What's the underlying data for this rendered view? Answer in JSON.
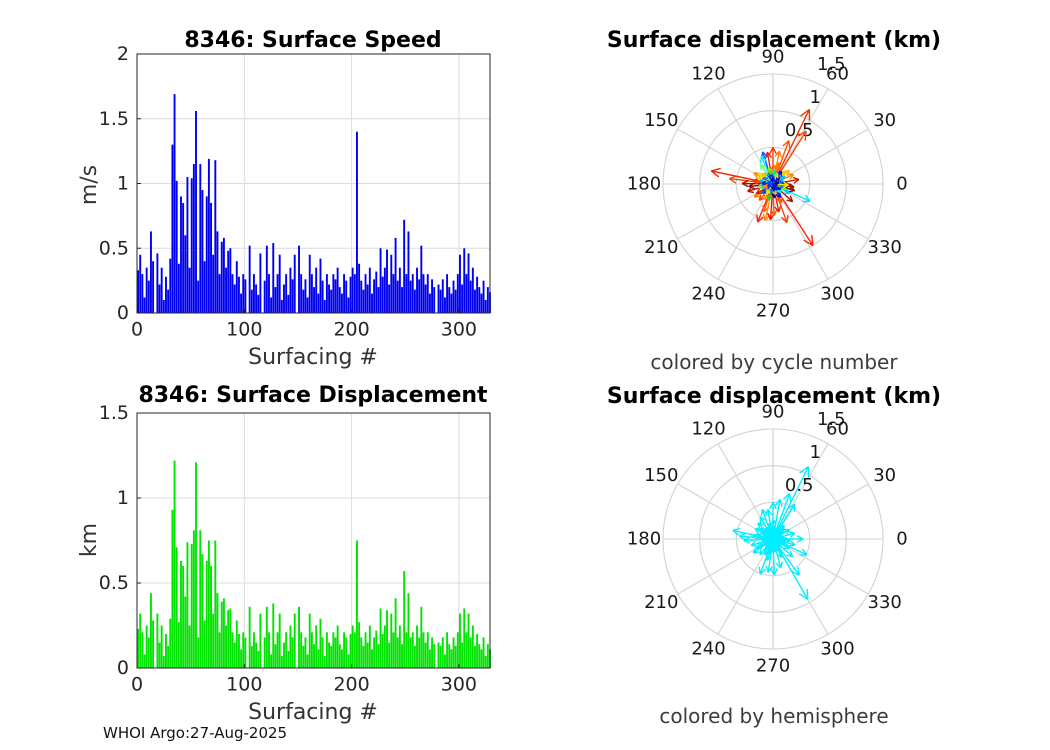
{
  "page": {
    "background": "#ffffff",
    "footer": "WHOI Argo:27-Aug-2025"
  },
  "chart_data": {
    "surface_speed": {
      "type": "bar",
      "title": "8346: Surface Speed",
      "xlabel": "Surfacing #",
      "ylabel": "m/s",
      "bar_color": "#0000f0",
      "grid": "on",
      "xlim": [
        0,
        329
      ],
      "ylim": [
        0,
        2
      ],
      "xticks": [
        0,
        100,
        200,
        300
      ],
      "xtick_labels": [
        "0",
        "100",
        "200",
        "300"
      ],
      "yticks": [
        0,
        0.5,
        1,
        1.5,
        2
      ],
      "ytick_labels": [
        "0",
        "0.5",
        "1",
        "1.5",
        "2"
      ],
      "x_start": 1,
      "x_step": 2,
      "values": [
        0.33,
        0.45,
        0.3,
        0.12,
        0.35,
        0.25,
        0.63,
        0.4,
        0.0,
        0.46,
        0.22,
        0.35,
        0.1,
        0.28,
        0.18,
        0.42,
        1.3,
        1.69,
        1.02,
        0.38,
        0.9,
        0.85,
        0.6,
        1.05,
        0.35,
        1.04,
        1.15,
        1.56,
        0.25,
        1.15,
        0.95,
        0.4,
        0.9,
        1.19,
        0.85,
        0.45,
        1.18,
        0.63,
        0.3,
        0.55,
        0.58,
        0.35,
        0.48,
        0.5,
        0.3,
        0.22,
        0.4,
        0.28,
        0.15,
        0.3,
        0.26,
        0.0,
        0.52,
        0.18,
        0.3,
        0.22,
        0.14,
        0.46,
        0.0,
        0.25,
        0.52,
        0.3,
        0.12,
        0.54,
        0.2,
        0.3,
        0.45,
        0.1,
        0.22,
        0.3,
        0.14,
        0.35,
        0.26,
        0.45,
        0.0,
        0.52,
        0.3,
        0.18,
        0.26,
        0.12,
        0.45,
        0.3,
        0.2,
        0.35,
        0.15,
        0.42,
        0.25,
        0.1,
        0.3,
        0.22,
        0.18,
        0.3,
        0.26,
        0.35,
        0.2,
        0.15,
        0.3,
        0.25,
        0.12,
        0.28,
        0.35,
        0.3,
        1.4,
        0.38,
        0.25,
        0.18,
        0.3,
        0.22,
        0.35,
        0.15,
        0.26,
        0.32,
        0.2,
        0.5,
        0.28,
        0.35,
        0.49,
        0.22,
        0.45,
        0.3,
        0.58,
        0.25,
        0.35,
        0.2,
        0.72,
        0.3,
        0.63,
        0.25,
        0.3,
        0.18,
        0.35,
        0.26,
        0.52,
        0.3,
        0.22,
        0.3,
        0.15,
        0.26,
        0.2,
        0.0,
        0.22,
        0.18,
        0.26,
        0.12,
        0.3,
        0.2,
        0.15,
        0.25,
        0.18,
        0.3,
        0.45,
        0.22,
        0.5,
        0.3,
        0.46,
        0.25,
        0.35,
        0.18,
        0.28,
        0.2,
        0.15,
        0.25,
        0.1,
        0.2,
        0.16
      ]
    },
    "surface_displacement": {
      "type": "bar",
      "title": "8346: Surface Displacement",
      "xlabel": "Surfacing #",
      "ylabel": "km",
      "bar_color": "#00e400",
      "grid": "on",
      "xlim": [
        0,
        329
      ],
      "ylim": [
        0,
        1.5
      ],
      "xticks": [
        0,
        100,
        200,
        300
      ],
      "xtick_labels": [
        "0",
        "100",
        "200",
        "300"
      ],
      "yticks": [
        0,
        0.5,
        1,
        1.5
      ],
      "ytick_labels": [
        "0",
        "0.5",
        "1",
        "1.5"
      ],
      "x_start": 1,
      "x_step": 2,
      "values": [
        0.23,
        0.32,
        0.21,
        0.08,
        0.25,
        0.18,
        0.44,
        0.28,
        0.0,
        0.32,
        0.15,
        0.25,
        0.07,
        0.2,
        0.13,
        0.29,
        0.93,
        1.22,
        0.71,
        0.27,
        0.63,
        0.6,
        0.42,
        0.74,
        0.25,
        0.73,
        0.81,
        1.21,
        0.18,
        0.81,
        0.67,
        0.28,
        0.63,
        0.75,
        0.6,
        0.32,
        0.75,
        0.44,
        0.21,
        0.39,
        0.41,
        0.25,
        0.34,
        0.35,
        0.21,
        0.15,
        0.28,
        0.2,
        0.11,
        0.21,
        0.18,
        0.0,
        0.36,
        0.13,
        0.21,
        0.15,
        0.1,
        0.32,
        0.0,
        0.18,
        0.36,
        0.21,
        0.08,
        0.38,
        0.14,
        0.21,
        0.32,
        0.07,
        0.15,
        0.21,
        0.1,
        0.25,
        0.18,
        0.32,
        0.0,
        0.36,
        0.21,
        0.13,
        0.18,
        0.08,
        0.32,
        0.21,
        0.14,
        0.25,
        0.11,
        0.29,
        0.18,
        0.07,
        0.21,
        0.15,
        0.13,
        0.21,
        0.18,
        0.25,
        0.14,
        0.11,
        0.21,
        0.18,
        0.08,
        0.2,
        0.25,
        0.21,
        0.75,
        0.27,
        0.18,
        0.13,
        0.21,
        0.15,
        0.25,
        0.11,
        0.18,
        0.22,
        0.14,
        0.35,
        0.2,
        0.25,
        0.34,
        0.15,
        0.32,
        0.21,
        0.41,
        0.18,
        0.25,
        0.14,
        0.57,
        0.21,
        0.44,
        0.18,
        0.21,
        0.13,
        0.25,
        0.18,
        0.36,
        0.21,
        0.15,
        0.21,
        0.11,
        0.18,
        0.14,
        0.0,
        0.15,
        0.13,
        0.18,
        0.08,
        0.21,
        0.14,
        0.11,
        0.18,
        0.13,
        0.21,
        0.32,
        0.15,
        0.35,
        0.21,
        0.32,
        0.18,
        0.25,
        0.13,
        0.2,
        0.14,
        0.11,
        0.18,
        0.07,
        0.14,
        0.11
      ]
    },
    "polar_by_cycle": {
      "type": "quiver-polar",
      "title": "Surface displacement (km)",
      "caption": "colored by cycle number",
      "rmax": 1.5,
      "rtick_values": [
        0.5,
        1,
        1.5
      ],
      "rtick_labels": [
        "0.5",
        "1",
        "1.5"
      ],
      "angle_ticks": [
        0,
        30,
        60,
        90,
        120,
        150,
        180,
        210,
        240,
        270,
        300,
        330
      ],
      "angle_tick_labels": [
        "0",
        "30",
        "60",
        "90",
        "120",
        "150",
        "180",
        "210",
        "240",
        "270",
        "300",
        "330"
      ],
      "colormap": "jet",
      "arrows": [
        [
          64,
          1.13,
          "#f03000"
        ],
        [
          58,
          0.85,
          "#ff4400"
        ],
        [
          70,
          0.63,
          "#ff5500"
        ],
        [
          79,
          0.46,
          "#ff8800"
        ],
        [
          90,
          0.5,
          "#ff3300"
        ],
        [
          100,
          0.44,
          "#ee2200"
        ],
        [
          108,
          0.46,
          "#2255ff"
        ],
        [
          113,
          0.41,
          "#00eeff"
        ],
        [
          122,
          0.32,
          "#66ff88"
        ],
        [
          150,
          0.3,
          "#ff8800"
        ],
        [
          168,
          0.86,
          "#ee2200"
        ],
        [
          173,
          0.6,
          "#ff4400"
        ],
        [
          179,
          0.42,
          "#991100"
        ],
        [
          186,
          0.33,
          "#881100"
        ],
        [
          196,
          0.36,
          "#bb1100"
        ],
        [
          215,
          0.31,
          "#ff7700"
        ],
        [
          230,
          0.29,
          "#ff4400"
        ],
        [
          248,
          0.56,
          "#ff2200"
        ],
        [
          252,
          0.4,
          "#ff6600"
        ],
        [
          258,
          0.51,
          "#ff8800"
        ],
        [
          266,
          0.49,
          "#ee1100"
        ],
        [
          272,
          0.43,
          "#ff5500"
        ],
        [
          282,
          0.39,
          "#ee2200"
        ],
        [
          290,
          0.56,
          "#ff4400"
        ],
        [
          303,
          1.0,
          "#ff2200"
        ],
        [
          318,
          0.36,
          "#aa1100"
        ],
        [
          335,
          0.56,
          "#00e5ff"
        ],
        [
          343,
          0.31,
          "#881100"
        ],
        [
          352,
          0.29,
          "#991100"
        ],
        [
          10,
          0.36,
          "#bb2200"
        ],
        [
          25,
          0.31,
          "#ff8800"
        ],
        [
          40,
          0.29,
          "#ffbb00"
        ],
        [
          45,
          0.24,
          "#ffcc00"
        ],
        [
          88,
          0.26,
          "#ff6600"
        ],
        [
          142,
          0.24,
          "#ddee00"
        ],
        [
          170,
          0.28,
          "#ff3300"
        ],
        [
          210,
          0.26,
          "#cc2200"
        ],
        [
          242,
          0.24,
          "#ff9900"
        ],
        [
          295,
          0.28,
          "#ff5500"
        ],
        [
          330,
          0.26,
          "#00ccff"
        ],
        [
          355,
          0.24,
          "#aa1100"
        ],
        [
          75,
          0.3,
          "#ff7700"
        ],
        [
          5,
          0.16,
          "#0033ee"
        ],
        [
          18,
          0.13,
          "#0077ff"
        ],
        [
          33,
          0.19,
          "#00bbff"
        ],
        [
          47,
          0.13,
          "#000099"
        ],
        [
          56,
          0.21,
          "#0011ee"
        ],
        [
          68,
          0.16,
          "#eeee00"
        ],
        [
          84,
          0.19,
          "#00ee88"
        ],
        [
          96,
          0.13,
          "#0044ff"
        ],
        [
          104,
          0.23,
          "#88ee00"
        ],
        [
          117,
          0.16,
          "#0000cc"
        ],
        [
          127,
          0.19,
          "#00eeff"
        ],
        [
          138,
          0.21,
          "#ffbb00"
        ],
        [
          148,
          0.16,
          "#0077ff"
        ],
        [
          158,
          0.23,
          "#eeee00"
        ],
        [
          166,
          0.19,
          "#00bbff"
        ],
        [
          176,
          0.16,
          "#0022ff"
        ],
        [
          192,
          0.21,
          "#77ee77"
        ],
        [
          204,
          0.13,
          "#ff8800"
        ],
        [
          222,
          0.19,
          "#0044ff"
        ],
        [
          238,
          0.16,
          "#eeee00"
        ],
        [
          254,
          0.23,
          "#00dd44"
        ],
        [
          262,
          0.13,
          "#0077ff"
        ],
        [
          276,
          0.19,
          "#000099"
        ],
        [
          286,
          0.16,
          "#ffbb00"
        ],
        [
          298,
          0.21,
          "#0011ee"
        ],
        [
          312,
          0.16,
          "#00eeff"
        ],
        [
          324,
          0.13,
          "#0000cc"
        ],
        [
          338,
          0.19,
          "#88ee00"
        ],
        [
          348,
          0.16,
          "#0077ff"
        ],
        [
          356,
          0.21,
          "#eeee00"
        ],
        [
          12,
          0.08,
          "#000099"
        ],
        [
          95,
          0.09,
          "#0000cc"
        ],
        [
          200,
          0.08,
          "#0033ee"
        ],
        [
          280,
          0.09,
          "#000099"
        ],
        [
          320,
          0.07,
          "#0011ee"
        ],
        [
          160,
          0.08,
          "#0044ff"
        ]
      ]
    },
    "polar_by_hemisphere": {
      "type": "quiver-polar",
      "title": "Surface displacement (km)",
      "caption": "colored by hemisphere",
      "rmax": 1.5,
      "rtick_values": [
        0.5,
        1,
        1.5
      ],
      "rtick_labels": [
        "0.5",
        "1",
        "1.5"
      ],
      "angle_ticks": [
        0,
        30,
        60,
        90,
        120,
        150,
        180,
        210,
        240,
        270,
        300,
        330
      ],
      "angle_tick_labels": [
        "0",
        "30",
        "60",
        "90",
        "120",
        "150",
        "180",
        "210",
        "240",
        "270",
        "300",
        "330"
      ],
      "arrow_color": "#00eeff",
      "arrows": [
        [
          64,
          1.1
        ],
        [
          58,
          0.56
        ],
        [
          70,
          0.66
        ],
        [
          80,
          0.55
        ],
        [
          90,
          0.5
        ],
        [
          100,
          0.41
        ],
        [
          110,
          0.43
        ],
        [
          120,
          0.35
        ],
        [
          133,
          0.3
        ],
        [
          150,
          0.28
        ],
        [
          168,
          0.56
        ],
        [
          175,
          0.46
        ],
        [
          183,
          0.4
        ],
        [
          196,
          0.31
        ],
        [
          215,
          0.33
        ],
        [
          230,
          0.28
        ],
        [
          250,
          0.51
        ],
        [
          262,
          0.46
        ],
        [
          272,
          0.49
        ],
        [
          285,
          0.41
        ],
        [
          300,
          0.95
        ],
        [
          306,
          0.61
        ],
        [
          318,
          0.36
        ],
        [
          335,
          0.51
        ],
        [
          345,
          0.31
        ],
        [
          0,
          0.41
        ],
        [
          15,
          0.31
        ],
        [
          30,
          0.26
        ],
        [
          45,
          0.21
        ],
        [
          50,
          0.24
        ],
        [
          88,
          0.26
        ],
        [
          142,
          0.24
        ],
        [
          170,
          0.28
        ],
        [
          210,
          0.26
        ],
        [
          242,
          0.24
        ],
        [
          255,
          0.3
        ],
        [
          295,
          0.28
        ],
        [
          330,
          0.26
        ],
        [
          355,
          0.24
        ],
        [
          5,
          0.16
        ],
        [
          22,
          0.12
        ],
        [
          38,
          0.18
        ],
        [
          52,
          0.14
        ],
        [
          62,
          0.2
        ],
        [
          75,
          0.15
        ],
        [
          86,
          0.18
        ],
        [
          95,
          0.12
        ],
        [
          105,
          0.22
        ],
        [
          115,
          0.15
        ],
        [
          126,
          0.18
        ],
        [
          140,
          0.2
        ],
        [
          155,
          0.15
        ],
        [
          165,
          0.22
        ],
        [
          178,
          0.18
        ],
        [
          190,
          0.15
        ],
        [
          205,
          0.2
        ],
        [
          220,
          0.12
        ],
        [
          235,
          0.18
        ],
        [
          245,
          0.15
        ],
        [
          258,
          0.22
        ],
        [
          268,
          0.12
        ],
        [
          278,
          0.18
        ],
        [
          290,
          0.15
        ],
        [
          298,
          0.2
        ],
        [
          312,
          0.15
        ],
        [
          325,
          0.12
        ],
        [
          340,
          0.18
        ],
        [
          350,
          0.15
        ],
        [
          358,
          0.2
        ],
        [
          8,
          0.09
        ],
        [
          98,
          0.08
        ],
        [
          200,
          0.09
        ],
        [
          282,
          0.08
        ],
        [
          320,
          0.07
        ],
        [
          160,
          0.08
        ]
      ]
    }
  }
}
